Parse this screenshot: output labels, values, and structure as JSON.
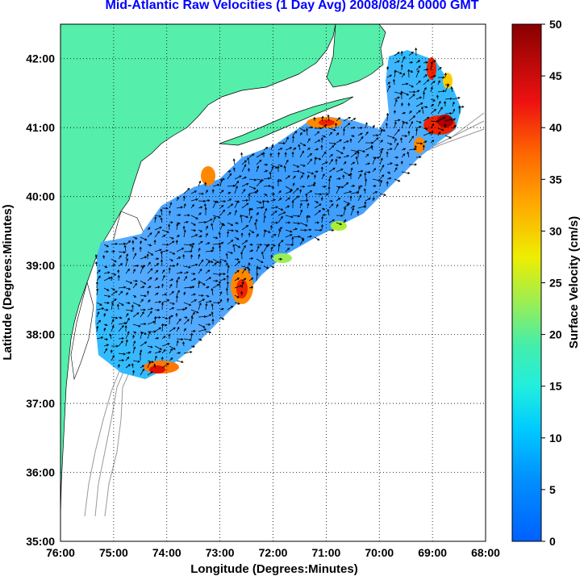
{
  "title": "Mid-Atlantic Raw Velocities (1 Day Avg) 2008/08/24 0000 GMT",
  "title_color": "#0000ff",
  "xlabel": "Longitude (Degrees:Minutes)",
  "ylabel": "Latitude (Degrees:Minutes)",
  "x_ticks": [
    "76:00",
    "75:00",
    "74:00",
    "73:00",
    "72:00",
    "71:00",
    "70:00",
    "69:00",
    "68:00"
  ],
  "y_ticks": [
    "35:00",
    "36:00",
    "37:00",
    "38:00",
    "39:00",
    "40:00",
    "41:00",
    "42:00"
  ],
  "colorbar": {
    "label": "Surface Velocity (cm/s)",
    "ticks": [
      "0",
      "5",
      "10",
      "15",
      "20",
      "25",
      "30",
      "35",
      "40",
      "45",
      "50"
    ],
    "range": [
      0,
      50
    ],
    "colormap": "jet"
  },
  "colors": {
    "land": "#55eeaa",
    "grid": "#000000",
    "bathymetry": "#999999",
    "arrows": "#000000"
  },
  "chart_data": {
    "type": "map",
    "xlim_deg_west": [
      76,
      68
    ],
    "ylim_deg_north": [
      35,
      42.5
    ],
    "grid": "dotted",
    "velocity_field": "1-day averaged HF radar surface currents"
  }
}
